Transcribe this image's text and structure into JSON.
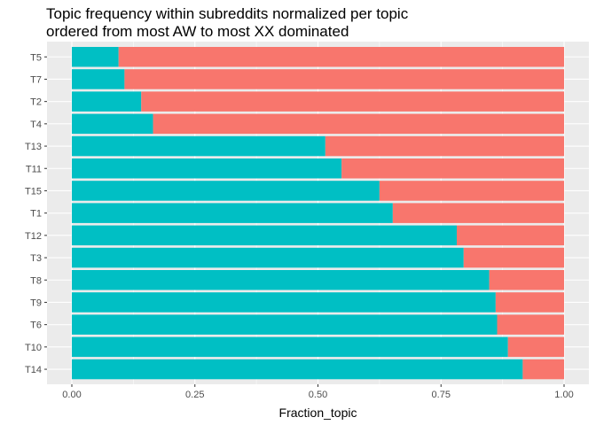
{
  "chart_data": {
    "type": "bar",
    "orientation": "horizontal",
    "stacked": true,
    "title": "Topic frequency within subreddits normalized per topic",
    "subtitle": "ordered from most AW to most XX dominated",
    "xlabel": "Fraction_topic",
    "ylabel": "",
    "xlim": [
      0,
      1
    ],
    "xticks": [
      "0.00",
      "0.25",
      "0.50",
      "0.75",
      "1.00"
    ],
    "grid": true,
    "legend": "none",
    "categories": [
      "T5",
      "T7",
      "T2",
      "T4",
      "T13",
      "T11",
      "T15",
      "T1",
      "T12",
      "T3",
      "T8",
      "T9",
      "T6",
      "T10",
      "T14"
    ],
    "series": [
      {
        "color": "#00BFC4",
        "values": [
          0.095,
          0.107,
          0.141,
          0.165,
          0.515,
          0.548,
          0.625,
          0.652,
          0.782,
          0.796,
          0.848,
          0.861,
          0.864,
          0.886,
          0.916
        ]
      },
      {
        "color": "#F8766D",
        "values": [
          0.905,
          0.893,
          0.859,
          0.835,
          0.485,
          0.452,
          0.375,
          0.348,
          0.218,
          0.204,
          0.152,
          0.139,
          0.136,
          0.114,
          0.084
        ]
      }
    ],
    "panel_background": "#EBEBEB",
    "gridline_color": "#FFFFFF"
  }
}
